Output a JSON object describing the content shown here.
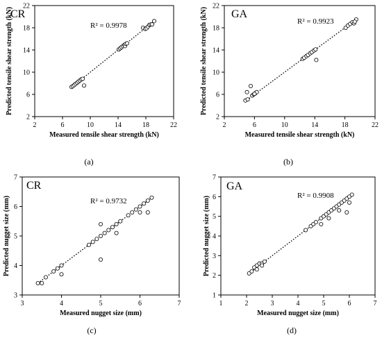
{
  "chart_data": [
    {
      "type": "scatter",
      "panel_caption": "(a)",
      "inset_label": "CR",
      "annotation": "R² = 0.9978",
      "xlabel": "Measured tensile shear strength (kN)",
      "ylabel": "Predicted tensile shear strength (kN)",
      "xlim": [
        2,
        22
      ],
      "ylim": [
        2,
        22
      ],
      "xticks": [
        2,
        6,
        10,
        14,
        18,
        22
      ],
      "yticks": [
        2,
        6,
        10,
        14,
        18,
        22
      ],
      "x_tick_labels": [
        "2",
        "6",
        "10",
        "14",
        "18",
        "22"
      ],
      "y_tick_labels": [
        "2",
        "6",
        "10",
        "14",
        "18",
        "22"
      ],
      "trendline": {
        "style": "dotted",
        "from": [
          7.3,
          7.3
        ],
        "to": [
          19.2,
          19.2
        ]
      },
      "points": [
        [
          7.3,
          7.35
        ],
        [
          7.5,
          7.5
        ],
        [
          7.7,
          7.7
        ],
        [
          7.9,
          7.9
        ],
        [
          8.1,
          8.1
        ],
        [
          8.3,
          8.3
        ],
        [
          8.5,
          8.5
        ],
        [
          8.7,
          8.7
        ],
        [
          8.9,
          8.8
        ],
        [
          9.1,
          7.6
        ],
        [
          14.1,
          14.1
        ],
        [
          14.3,
          14.3
        ],
        [
          14.5,
          14.5
        ],
        [
          14.7,
          14.7
        ],
        [
          14.9,
          14.9
        ],
        [
          15.0,
          14.7
        ],
        [
          15.1,
          15.1
        ],
        [
          15.3,
          15.2
        ],
        [
          17.6,
          18.0
        ],
        [
          17.9,
          17.8
        ],
        [
          18.1,
          17.9
        ],
        [
          18.3,
          18.2
        ],
        [
          18.5,
          18.5
        ],
        [
          18.7,
          18.6
        ],
        [
          18.9,
          18.6
        ],
        [
          19.2,
          19.2
        ]
      ]
    },
    {
      "type": "scatter",
      "panel_caption": "(b)",
      "inset_label": "GA",
      "annotation": "R² = 0.9923",
      "xlabel": "Measured tensile shear strength (kN)",
      "ylabel": "Predicted tensile shear strength (kN)",
      "xlim": [
        2,
        22
      ],
      "ylim": [
        2,
        22
      ],
      "xticks": [
        2,
        6,
        10,
        14,
        18,
        22
      ],
      "yticks": [
        2,
        6,
        10,
        14,
        18,
        22
      ],
      "x_tick_labels": [
        "2",
        "6",
        "10",
        "14",
        "18",
        "22"
      ],
      "y_tick_labels": [
        "2",
        "6",
        "10",
        "14",
        "18",
        "22"
      ],
      "trendline": {
        "style": "dotted",
        "from": [
          5.0,
          5.0
        ],
        "to": [
          19.5,
          19.5
        ]
      },
      "points": [
        [
          4.8,
          4.9
        ],
        [
          5.1,
          5.1
        ],
        [
          5.0,
          6.4
        ],
        [
          5.5,
          7.5
        ],
        [
          5.7,
          5.8
        ],
        [
          5.9,
          6.0
        ],
        [
          6.1,
          6.2
        ],
        [
          6.3,
          6.4
        ],
        [
          6.0,
          6.1
        ],
        [
          12.4,
          12.4
        ],
        [
          12.6,
          12.6
        ],
        [
          12.9,
          12.9
        ],
        [
          13.1,
          13.1
        ],
        [
          13.4,
          13.4
        ],
        [
          13.6,
          13.6
        ],
        [
          13.9,
          13.9
        ],
        [
          14.1,
          14.1
        ],
        [
          14.2,
          12.2
        ],
        [
          18.1,
          18.0
        ],
        [
          18.4,
          18.4
        ],
        [
          18.7,
          18.7
        ],
        [
          19.0,
          19.0
        ],
        [
          19.2,
          18.8
        ],
        [
          19.5,
          19.5
        ],
        [
          19.3,
          19.1
        ]
      ]
    },
    {
      "type": "scatter",
      "panel_caption": "(c)",
      "inset_label": "CR",
      "annotation": "R² = 0.9732",
      "xlabel": "Measured nugget size (mm)",
      "ylabel": "Predicted nugget size (mm)",
      "xlim": [
        3,
        7
      ],
      "ylim": [
        3,
        7
      ],
      "xticks": [
        3,
        4,
        5,
        6,
        7
      ],
      "yticks": [
        3,
        4,
        5,
        6,
        7
      ],
      "x_tick_labels": [
        "3",
        "4",
        "5",
        "6",
        "7"
      ],
      "y_tick_labels": [
        "3",
        "4",
        "5",
        "6",
        "7"
      ],
      "trendline": {
        "style": "dotted",
        "from": [
          3.4,
          3.4
        ],
        "to": [
          6.3,
          6.3
        ]
      },
      "points": [
        [
          3.4,
          3.4
        ],
        [
          3.5,
          3.4
        ],
        [
          3.6,
          3.6
        ],
        [
          3.8,
          3.8
        ],
        [
          3.9,
          3.9
        ],
        [
          4.0,
          4.0
        ],
        [
          4.0,
          3.7
        ],
        [
          4.7,
          4.7
        ],
        [
          4.8,
          4.8
        ],
        [
          4.9,
          4.9
        ],
        [
          5.0,
          5.0
        ],
        [
          5.0,
          5.4
        ],
        [
          5.0,
          4.2
        ],
        [
          5.1,
          5.1
        ],
        [
          5.2,
          5.2
        ],
        [
          5.3,
          5.3
        ],
        [
          5.4,
          5.1
        ],
        [
          5.4,
          5.4
        ],
        [
          5.5,
          5.5
        ],
        [
          5.7,
          5.7
        ],
        [
          5.8,
          5.8
        ],
        [
          5.9,
          5.9
        ],
        [
          6.0,
          6.0
        ],
        [
          6.0,
          5.8
        ],
        [
          6.1,
          6.1
        ],
        [
          6.2,
          5.8
        ],
        [
          6.2,
          6.2
        ],
        [
          6.3,
          6.3
        ]
      ]
    },
    {
      "type": "scatter",
      "panel_caption": "(d)",
      "inset_label": "GA",
      "annotation": "R² = 0.9908",
      "xlabel": "Measured nugget size (mm)",
      "ylabel": "Predicted nugget size (mm)",
      "xlim": [
        1,
        7
      ],
      "ylim": [
        1,
        7
      ],
      "xticks": [
        1,
        2,
        3,
        4,
        5,
        6,
        7
      ],
      "yticks": [
        1,
        2,
        3,
        4,
        5,
        6,
        7
      ],
      "x_tick_labels": [
        "1",
        "2",
        "3",
        "4",
        "5",
        "6",
        "7"
      ],
      "y_tick_labels": [
        "1",
        "2",
        "3",
        "4",
        "5",
        "6",
        "7"
      ],
      "trendline": {
        "style": "dotted",
        "from": [
          2.1,
          2.1
        ],
        "to": [
          6.1,
          6.1
        ]
      },
      "points": [
        [
          2.1,
          2.1
        ],
        [
          2.2,
          2.2
        ],
        [
          2.3,
          2.4
        ],
        [
          2.4,
          2.5
        ],
        [
          2.5,
          2.6
        ],
        [
          2.6,
          2.6
        ],
        [
          2.7,
          2.7
        ],
        [
          2.4,
          2.3
        ],
        [
          2.6,
          2.5
        ],
        [
          4.3,
          4.3
        ],
        [
          4.5,
          4.5
        ],
        [
          4.6,
          4.6
        ],
        [
          4.7,
          4.7
        ],
        [
          4.9,
          4.6
        ],
        [
          4.9,
          4.9
        ],
        [
          5.0,
          5.0
        ],
        [
          5.1,
          5.1
        ],
        [
          5.2,
          4.9
        ],
        [
          5.2,
          5.2
        ],
        [
          5.3,
          5.3
        ],
        [
          5.4,
          5.4
        ],
        [
          5.5,
          5.5
        ],
        [
          5.6,
          5.3
        ],
        [
          5.6,
          5.6
        ],
        [
          5.7,
          5.7
        ],
        [
          5.8,
          5.8
        ],
        [
          5.9,
          5.9
        ],
        [
          5.9,
          5.2
        ],
        [
          6.0,
          5.7
        ],
        [
          6.0,
          6.0
        ],
        [
          6.1,
          6.1
        ]
      ]
    }
  ]
}
